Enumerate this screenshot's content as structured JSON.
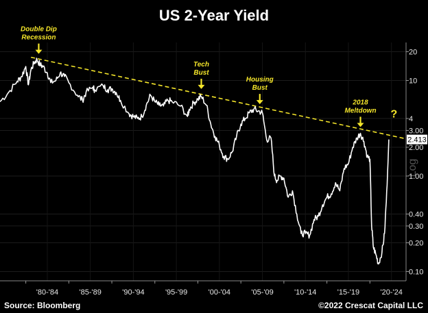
{
  "chart_data": {
    "type": "line",
    "title": "US 2-Year Yield",
    "y_scale": "log",
    "ylim": [
      0.08,
      25
    ],
    "y_ticks": [
      20,
      10,
      4,
      3.0,
      2.0,
      1.0,
      0.4,
      0.3,
      0.2,
      0.1
    ],
    "y_tick_labels": [
      "20",
      "10",
      "4",
      "3.00",
      "2.00",
      "1.00",
      "0.40",
      "0.30",
      "0.20",
      "0.10"
    ],
    "x_range": [
      1977,
      2024.2
    ],
    "x_tick_labels": [
      "'80-'84",
      "'85-'89",
      "'90-'94",
      "'95-'99",
      "'00-'04",
      "'05-'09",
      "'10-'14",
      "'15-'19",
      "'20-'24"
    ],
    "x_tick_positions": [
      1982.5,
      1987.5,
      1992.5,
      1997.5,
      2002.5,
      2007.5,
      2012.5,
      2017.5,
      2022.5
    ],
    "last_value": "2.413",
    "series": [
      {
        "color": "#ffffff",
        "x": [
          1977.0,
          1978.0,
          1979.0,
          1979.5,
          1980.0,
          1980.3,
          1980.6,
          1981.0,
          1981.3,
          1981.7,
          1982.0,
          1982.5,
          1982.9,
          1983.5,
          1984.0,
          1984.5,
          1985.0,
          1986.0,
          1986.6,
          1987.0,
          1987.8,
          1988.0,
          1989.0,
          1989.5,
          1990.0,
          1990.5,
          1991.0,
          1992.0,
          1992.5,
          1993.0,
          1993.5,
          1994.0,
          1994.5,
          1995.0,
          1995.5,
          1996.0,
          1996.5,
          1997.0,
          1998.0,
          1998.8,
          1999.0,
          1999.5,
          2000.0,
          2000.4,
          2001.0,
          2001.5,
          2002.0,
          2002.5,
          2003.0,
          2003.5,
          2004.0,
          2004.5,
          2005.0,
          2005.5,
          2006.0,
          2006.5,
          2007.0,
          2007.5,
          2008.0,
          2008.5,
          2008.9,
          2009.2,
          2009.6,
          2010.0,
          2010.5,
          2011.0,
          2011.5,
          2012.0,
          2012.5,
          2013.0,
          2013.5,
          2014.0,
          2014.5,
          2015.0,
          2015.5,
          2016.0,
          2016.5,
          2017.0,
          2017.5,
          2018.0,
          2018.5,
          2018.9,
          2019.3,
          2019.7,
          2020.0,
          2020.2,
          2020.4,
          2020.7,
          2021.0,
          2021.4,
          2021.7,
          2022.0,
          2022.2
        ],
        "y": [
          6.0,
          7.5,
          9.8,
          11.0,
          14.0,
          9.0,
          13.0,
          15.5,
          16.5,
          14.5,
          14.0,
          12.0,
          9.5,
          10.0,
          12.0,
          11.0,
          9.5,
          7.0,
          6.2,
          7.5,
          8.5,
          8.0,
          8.8,
          8.0,
          8.2,
          7.5,
          6.2,
          4.5,
          4.2,
          4.0,
          4.2,
          5.5,
          7.0,
          6.0,
          5.5,
          5.4,
          6.2,
          6.0,
          5.4,
          4.2,
          5.0,
          5.8,
          6.4,
          6.8,
          5.5,
          3.5,
          2.6,
          2.1,
          1.6,
          1.5,
          1.8,
          2.6,
          3.5,
          4.0,
          4.6,
          5.0,
          4.8,
          4.6,
          2.4,
          2.5,
          1.0,
          0.9,
          1.0,
          0.95,
          0.6,
          0.7,
          0.4,
          0.25,
          0.25,
          0.24,
          0.35,
          0.38,
          0.5,
          0.6,
          0.65,
          0.85,
          0.7,
          1.2,
          1.35,
          2.0,
          2.5,
          2.8,
          2.3,
          1.6,
          1.5,
          0.3,
          0.18,
          0.15,
          0.12,
          0.16,
          0.25,
          0.8,
          2.413
        ]
      }
    ],
    "trendline": {
      "color": "#f5e62a",
      "style": "dashed",
      "from": [
        1980.6,
        17.5
      ],
      "to": [
        2024.2,
        2.45
      ]
    },
    "annotations": [
      {
        "lines": [
          "Double Dip",
          "Recession"
        ],
        "x": 1981.5,
        "y": 17.5
      },
      {
        "lines": [
          "Tech",
          "Bust"
        ],
        "x": 2000.4,
        "y": 7.5
      },
      {
        "lines": [
          "Housing",
          "Bust"
        ],
        "x": 2007.2,
        "y": 5.2
      },
      {
        "lines": [
          "2018",
          "Meltdown"
        ],
        "x": 2018.9,
        "y": 3.0
      },
      {
        "lines": [
          "?"
        ],
        "x": 2022.8,
        "y": 3.6
      }
    ],
    "source": "Source: Bloomberg",
    "copyright": "©2022 Crescat Capital LLC",
    "watermark": "Log"
  }
}
